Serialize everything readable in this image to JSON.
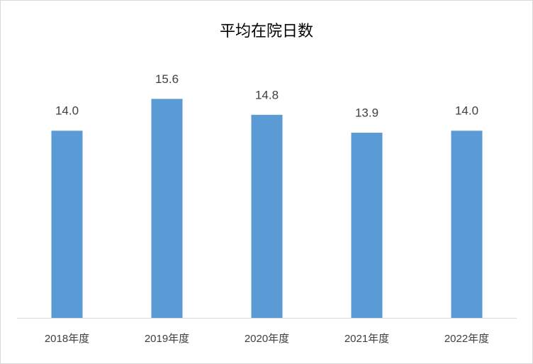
{
  "chart_data": {
    "type": "bar",
    "title": "平均在院日数",
    "categories": [
      "2018年度",
      "2019年度",
      "2020年度",
      "2021年度",
      "2022年度"
    ],
    "values": [
      14.0,
      15.6,
      14.8,
      13.9,
      14.0
    ],
    "value_labels": [
      "14.0",
      "15.6",
      "14.8",
      "13.9",
      "14.0"
    ],
    "color": "#5b9bd5",
    "ylim": [
      4.6,
      18
    ]
  }
}
